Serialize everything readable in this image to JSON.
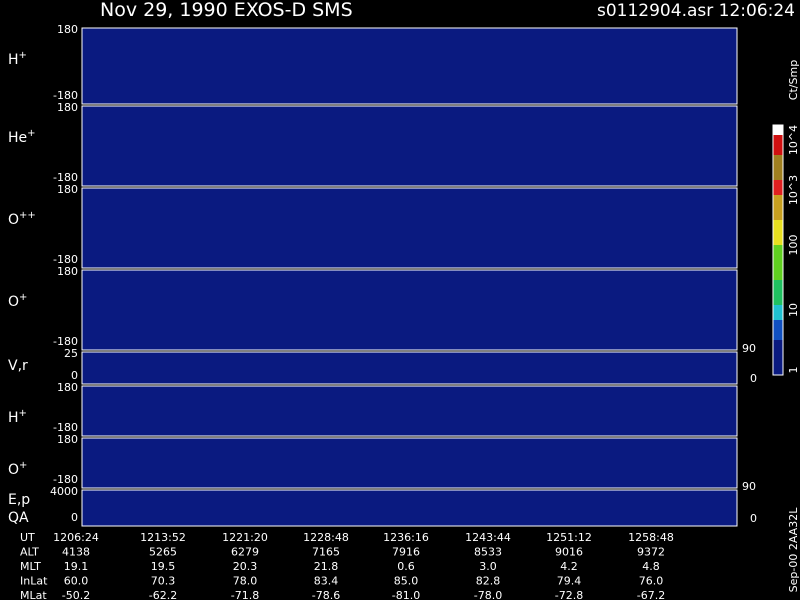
{
  "header": {
    "title": "Nov 29, 1990    EXOS-D SMS",
    "file": "s0112904.asr  12:06:24"
  },
  "panels": [
    {
      "label": "H",
      "sup": "+",
      "ticks": [
        "180",
        "-180"
      ]
    },
    {
      "label": "He",
      "sup": "+",
      "ticks": [
        "180",
        "-180"
      ]
    },
    {
      "label": "O",
      "sup": "++",
      "ticks": [
        "180",
        "-180"
      ]
    },
    {
      "label": "O",
      "sup": "+",
      "ticks": [
        "180",
        "-180"
      ]
    },
    {
      "label": "V,r",
      "ticks": [
        "25",
        "0"
      ],
      "right_ticks": [
        "90",
        "0"
      ]
    },
    {
      "label": "H",
      "sup": "+",
      "ticks": [
        "180",
        "-180"
      ]
    },
    {
      "label": "O",
      "sup": "+",
      "ticks": [
        "180",
        "-180"
      ]
    },
    {
      "label": "E,p",
      "label2": "QA",
      "ticks": [
        "4000",
        "0"
      ],
      "right_ticks": [
        "90",
        "0"
      ]
    }
  ],
  "colorbar": {
    "unit": "Ct/Smp",
    "labels": [
      "10^4",
      "10^3",
      "100",
      "10",
      "1"
    ]
  },
  "footer": "Sep-00  2AA32L",
  "table": {
    "rows": [
      {
        "name": "UT",
        "values": [
          "1206:24",
          "1213:52",
          "1221:20",
          "1228:48",
          "1236:16",
          "1243:44",
          "1251:12",
          "1258:48"
        ]
      },
      {
        "name": "ALT",
        "values": [
          "4138",
          "5265",
          "6279",
          "7165",
          "7916",
          "8533",
          "9016",
          "9372"
        ]
      },
      {
        "name": "MLT",
        "values": [
          "19.1",
          "19.5",
          "20.3",
          "21.8",
          "0.6",
          "3.0",
          "4.2",
          "4.8"
        ]
      },
      {
        "name": "InLat",
        "values": [
          "60.0",
          "70.3",
          "78.0",
          "83.4",
          "85.0",
          "82.8",
          "79.4",
          "76.0"
        ]
      },
      {
        "name": "MLat",
        "values": [
          "-50.2",
          "-62.2",
          "-71.8",
          "-78.6",
          "-81.0",
          "-78.0",
          "-72.8",
          "-67.2"
        ]
      }
    ]
  }
}
